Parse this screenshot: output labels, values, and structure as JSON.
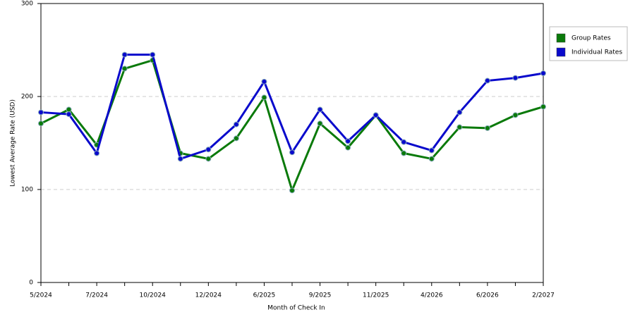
{
  "chart_data": {
    "type": "line",
    "x_label": "Month of Check In",
    "y_label": "Lowest Average Rate (USD)",
    "categories": [
      "5/2024",
      null,
      "7/2024",
      null,
      "10/2024",
      null,
      "12/2024",
      null,
      "6/2025",
      null,
      "9/2025",
      null,
      "11/2025",
      null,
      "4/2026",
      null,
      "6/2026",
      null,
      "2/2027"
    ],
    "series": [
      {
        "name": "Group Rates",
        "color": "#0a7a0a",
        "values": [
          171,
          186,
          148,
          230,
          239,
          139,
          133,
          155,
          199,
          99,
          171,
          145,
          180,
          139,
          133,
          167,
          166,
          180,
          189
        ]
      },
      {
        "name": "Individual Rates",
        "color": "#0a0acc",
        "values": [
          183,
          181,
          139,
          245,
          245,
          133,
          143,
          170,
          216,
          140,
          186,
          152,
          180,
          151,
          142,
          183,
          217,
          220,
          225
        ]
      }
    ],
    "ylim": [
      0,
      300
    ],
    "yticks": [
      0,
      100,
      200,
      300
    ],
    "grid": true,
    "legend": "right"
  }
}
